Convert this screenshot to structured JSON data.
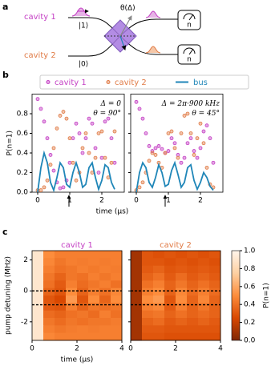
{
  "panel_labels": [
    "a",
    "b",
    "c"
  ],
  "diagram": {
    "inputs": [
      "cavity 1",
      "cavity 2"
    ],
    "states": [
      "|1⟩",
      "|0⟩"
    ],
    "angle": "θ(Δ)",
    "detectors": [
      "n",
      "n"
    ]
  },
  "chart_data": [
    {
      "type": "line",
      "ylabel": "P(n=1)",
      "xlabel": "time (μs)",
      "xlim": [
        -0.175,
        2.7
      ],
      "ylim": [
        0,
        1.0
      ],
      "xticks": [
        0,
        1,
        2
      ],
      "yticks": [
        {
          "value": 0,
          "label": "0.0"
        },
        {
          "value": 0.2,
          "label": "0.2"
        },
        {
          "value": 0.4,
          "label": "0.4"
        },
        {
          "value": 0.6,
          "label": "0.6"
        },
        {
          "value": 0.8,
          "label": "0.8"
        }
      ],
      "annotations": [
        "Δ = 0",
        "θ = 90°"
      ],
      "x": [
        0,
        0.1,
        0.2,
        0.3,
        0.4,
        0.5,
        0.6,
        0.7,
        0.8,
        0.9,
        1.0,
        1.1,
        1.2,
        1.3,
        1.4,
        1.5,
        1.6,
        1.7,
        1.8,
        1.9,
        2.0,
        2.1,
        2.2,
        2.3,
        2.4
      ],
      "series": [
        {
          "name": "cavity 1",
          "style": "markers",
          "color": "#c43fc4",
          "values": [
            0.95,
            0.85,
            0.72,
            0.55,
            0.38,
            0.22,
            0.1,
            0.04,
            0.05,
            0.12,
            0.3,
            0.55,
            0.7,
            0.6,
            0.4,
            0.55,
            0.75,
            0.7,
            0.45,
            0.2,
            0.35,
            0.72,
            0.75,
            0.55,
            0.3
          ]
        },
        {
          "name": "cavity 2",
          "style": "markers",
          "color": "#e07a45",
          "values": [
            0.02,
            0.02,
            0.05,
            0.12,
            0.28,
            0.45,
            0.65,
            0.78,
            0.82,
            0.75,
            0.55,
            0.3,
            0.12,
            0.2,
            0.45,
            0.6,
            0.4,
            0.2,
            0.35,
            0.6,
            0.62,
            0.35,
            0.15,
            0.3,
            0.62
          ]
        },
        {
          "name": "bus",
          "style": "line",
          "color": "#1f86b8",
          "values": [
            0,
            0.25,
            0.4,
            0.3,
            0.1,
            0.02,
            0.15,
            0.3,
            0.25,
            0.08,
            0.05,
            0.2,
            0.3,
            0.2,
            0.05,
            0.08,
            0.25,
            0.3,
            0.15,
            0.03,
            0.12,
            0.28,
            0.25,
            0.1,
            0.03
          ]
        }
      ]
    },
    {
      "type": "line",
      "xlim": [
        -0.175,
        2.7
      ],
      "ylim": [
        0,
        1.0
      ],
      "xticks": [
        0,
        1,
        2
      ],
      "yticks": [
        0,
        0.2,
        0.4,
        0.6,
        0.8
      ],
      "annotations": [
        "Δ = 2π·900 kHz",
        "θ = 45°"
      ],
      "x": [
        0,
        0.1,
        0.2,
        0.3,
        0.4,
        0.5,
        0.6,
        0.7,
        0.8,
        0.9,
        1.0,
        1.1,
        1.2,
        1.3,
        1.4,
        1.5,
        1.6,
        1.7,
        1.8,
        1.9,
        2.0,
        2.1,
        2.2,
        2.3,
        2.4
      ],
      "series": [
        {
          "style": "markers",
          "color": "#c43fc4",
          "values": [
            0.92,
            0.85,
            0.75,
            0.6,
            0.47,
            0.42,
            0.45,
            0.47,
            0.44,
            0.4,
            0.42,
            0.55,
            0.5,
            0.38,
            0.3,
            0.35,
            0.5,
            0.55,
            0.42,
            0.35,
            0.45,
            0.62,
            0.68,
            0.55,
            0.3
          ]
        },
        {
          "style": "markers",
          "color": "#e07a45",
          "values": [
            0.02,
            0.05,
            0.1,
            0.2,
            0.32,
            0.4,
            0.38,
            0.3,
            0.25,
            0.4,
            0.6,
            0.62,
            0.45,
            0.35,
            0.6,
            0.78,
            0.8,
            0.6,
            0.38,
            0.55,
            0.7,
            0.5,
            0.25,
            0.08,
            0.05
          ]
        },
        {
          "style": "line",
          "color": "#1f86b8",
          "values": [
            0,
            0.2,
            0.3,
            0.25,
            0.1,
            0.05,
            0.15,
            0.28,
            0.2,
            0.06,
            0.08,
            0.22,
            0.3,
            0.18,
            0.05,
            0.1,
            0.25,
            0.28,
            0.12,
            0.03,
            0.1,
            0.2,
            0.15,
            0.06,
            0.02
          ]
        }
      ]
    },
    {
      "type": "heatmap",
      "title": "cavity 1",
      "title_color": "#c43fc4",
      "ylabel": "pump detuning (MHz)",
      "xlabel": "time (μs)",
      "xlim": [
        0,
        4
      ],
      "ylim": [
        -3.2,
        2.6
      ],
      "xticks": [
        0,
        2,
        4
      ],
      "yticks": [
        -2,
        0,
        2
      ],
      "dashed_lines": [
        0,
        -0.9
      ],
      "colormap": [
        "#7f2704",
        "#d94801",
        "#fd8d3c",
        "#fdd0a2",
        "#fff5eb"
      ],
      "zlim": [
        0,
        1.0
      ],
      "z": [
        [
          0.9,
          0.5,
          0.45,
          0.45,
          0.45,
          0.45,
          0.45,
          0.45
        ],
        [
          0.9,
          0.48,
          0.42,
          0.45,
          0.44,
          0.45,
          0.44,
          0.45
        ],
        [
          0.9,
          0.45,
          0.4,
          0.42,
          0.45,
          0.43,
          0.45,
          0.44
        ],
        [
          0.9,
          0.42,
          0.35,
          0.42,
          0.4,
          0.45,
          0.42,
          0.45
        ],
        [
          0.9,
          0.4,
          0.32,
          0.45,
          0.38,
          0.42,
          0.45,
          0.4
        ],
        [
          0.9,
          0.35,
          0.3,
          0.5,
          0.35,
          0.45,
          0.4,
          0.48
        ],
        [
          0.9,
          0.3,
          0.25,
          0.55,
          0.3,
          0.5,
          0.35,
          0.5
        ],
        [
          0.9,
          0.32,
          0.3,
          0.45,
          0.35,
          0.42,
          0.4,
          0.42
        ],
        [
          0.9,
          0.38,
          0.35,
          0.4,
          0.42,
          0.38,
          0.45,
          0.4
        ],
        [
          0.9,
          0.42,
          0.38,
          0.42,
          0.4,
          0.42,
          0.42,
          0.44
        ],
        [
          0.9,
          0.45,
          0.42,
          0.44,
          0.45,
          0.44,
          0.45,
          0.45
        ],
        [
          0.9,
          0.48,
          0.45,
          0.45,
          0.45,
          0.45,
          0.45,
          0.45
        ]
      ]
    },
    {
      "type": "heatmap",
      "title": "cavity 2",
      "title_color": "#e07a45",
      "xlim": [
        0,
        4
      ],
      "ylim": [
        -3.2,
        2.6
      ],
      "xticks": [
        0,
        2,
        4
      ],
      "yticks": [
        -2,
        0,
        2
      ],
      "dashed_lines": [
        0,
        -0.9
      ],
      "colormap": [
        "#7f2704",
        "#d94801",
        "#fd8d3c",
        "#fdd0a2",
        "#fff5eb"
      ],
      "zlim": [
        0,
        1.0
      ],
      "colorbar": {
        "label": "P(n=1)",
        "ticks": [
          {
            "value": 0,
            "label": "0.0"
          },
          {
            "value": 0.2,
            "label": "0.2"
          },
          {
            "value": 0.4,
            "label": "0.4"
          },
          {
            "value": 0.6,
            "label": "0.6"
          },
          {
            "value": 0.8,
            "label": "0.8"
          },
          {
            "value": 1,
            "label": "1.0"
          }
        ]
      },
      "z": [
        [
          0.1,
          0.3,
          0.28,
          0.3,
          0.28,
          0.3,
          0.28,
          0.3
        ],
        [
          0.1,
          0.3,
          0.3,
          0.28,
          0.3,
          0.28,
          0.3,
          0.28
        ],
        [
          0.1,
          0.32,
          0.35,
          0.3,
          0.32,
          0.3,
          0.32,
          0.3
        ],
        [
          0.1,
          0.35,
          0.4,
          0.32,
          0.38,
          0.32,
          0.35,
          0.32
        ],
        [
          0.1,
          0.4,
          0.45,
          0.35,
          0.42,
          0.35,
          0.4,
          0.35
        ],
        [
          0.1,
          0.45,
          0.5,
          0.35,
          0.48,
          0.38,
          0.45,
          0.38
        ],
        [
          0.1,
          0.5,
          0.55,
          0.3,
          0.5,
          0.35,
          0.48,
          0.35
        ],
        [
          0.1,
          0.45,
          0.48,
          0.32,
          0.45,
          0.35,
          0.42,
          0.35
        ],
        [
          0.1,
          0.4,
          0.42,
          0.35,
          0.4,
          0.35,
          0.38,
          0.35
        ],
        [
          0.1,
          0.35,
          0.38,
          0.32,
          0.35,
          0.32,
          0.35,
          0.32
        ],
        [
          0.1,
          0.32,
          0.32,
          0.3,
          0.3,
          0.3,
          0.3,
          0.3
        ],
        [
          0.1,
          0.3,
          0.3,
          0.28,
          0.28,
          0.28,
          0.28,
          0.28
        ]
      ]
    }
  ]
}
